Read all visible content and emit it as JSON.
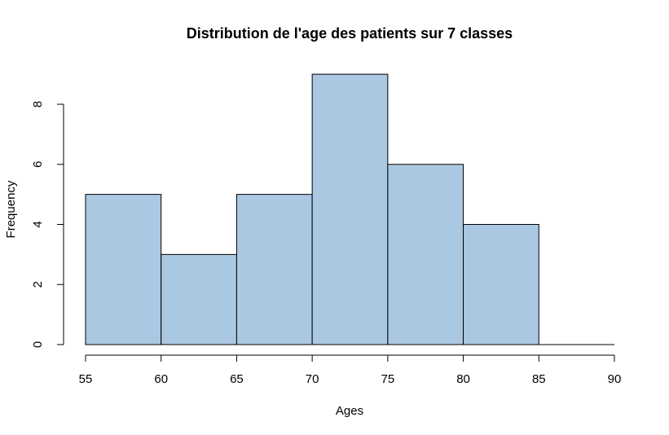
{
  "chart_data": {
    "type": "bar",
    "title": "Distribution de l'age des patients sur 7 classes",
    "xlabel": "Ages",
    "ylabel": "Frequency",
    "bins": [
      {
        "from": 55,
        "to": 60,
        "value": 5
      },
      {
        "from": 60,
        "to": 65,
        "value": 3
      },
      {
        "from": 65,
        "to": 70,
        "value": 5
      },
      {
        "from": 70,
        "to": 75,
        "value": 9
      },
      {
        "from": 75,
        "to": 80,
        "value": 6
      },
      {
        "from": 80,
        "to": 85,
        "value": 4
      },
      {
        "from": 85,
        "to": 90,
        "value": 0
      }
    ],
    "xlim": [
      55,
      90
    ],
    "ylim": [
      0,
      9
    ],
    "x_ticks": [
      55,
      60,
      65,
      70,
      75,
      80,
      85,
      90
    ],
    "y_ticks": [
      0,
      2,
      4,
      6,
      8
    ],
    "bar_color": "#abc8e2",
    "edge_color": "#000000",
    "grid": false
  }
}
